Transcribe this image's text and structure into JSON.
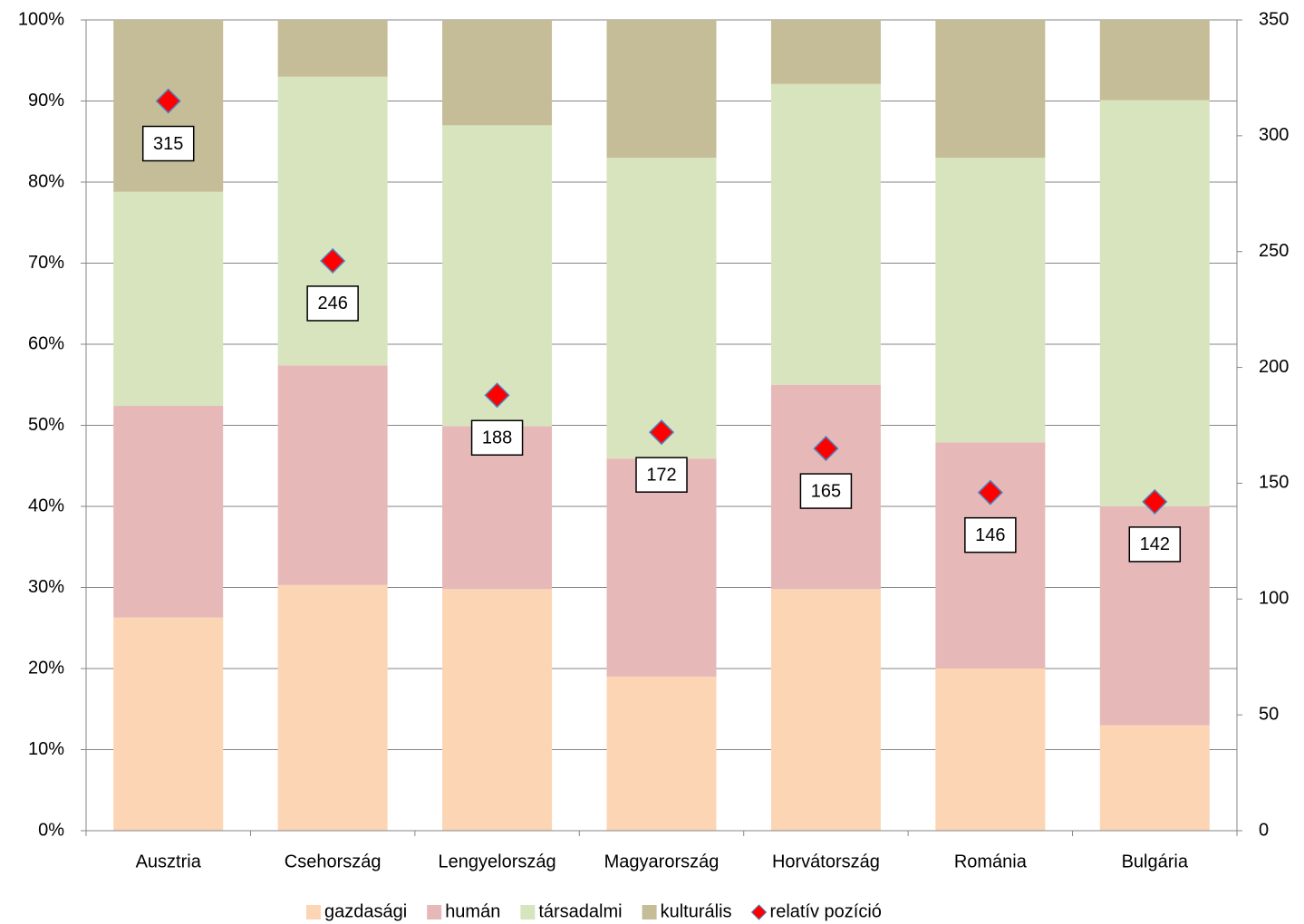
{
  "chart_data": {
    "type": "bar",
    "stacked": true,
    "categories": [
      "Ausztria",
      "Csehország",
      "Lengyelország",
      "Magyarország",
      "Horvátország",
      "Románia",
      "Bulgária"
    ],
    "series": [
      {
        "name": "gazdasági",
        "color": "#fcd5b5",
        "values": [
          26.3,
          30.3,
          29.8,
          19.0,
          29.8,
          20.0,
          13.0
        ]
      },
      {
        "name": "humán",
        "color": "#e6b9b8",
        "values": [
          26.1,
          27.1,
          20.1,
          26.9,
          25.2,
          27.9,
          27.0
        ]
      },
      {
        "name": "társadalmi",
        "color": "#d7e4bd",
        "values": [
          26.4,
          35.6,
          37.1,
          37.1,
          37.1,
          35.1,
          50.1
        ]
      },
      {
        "name": "kulturális",
        "color": "#c4bd97",
        "values": [
          21.2,
          7.0,
          13.0,
          17.0,
          7.9,
          17.0,
          9.9
        ]
      },
      {
        "name": "relatív pozíció",
        "color": "#ff0000",
        "type": "scatter",
        "axis": "y2",
        "values": [
          315,
          246,
          188,
          172,
          165,
          146,
          142
        ]
      }
    ],
    "ylim": [
      0,
      100
    ],
    "yticks": [
      {
        "value": 0,
        "label": "0%"
      },
      {
        "value": 10,
        "label": "10%"
      },
      {
        "value": 20,
        "label": "20%"
      },
      {
        "value": 30,
        "label": "30%"
      },
      {
        "value": 40,
        "label": "40%"
      },
      {
        "value": 50,
        "label": "50%"
      },
      {
        "value": 60,
        "label": "60%"
      },
      {
        "value": 70,
        "label": "70%"
      },
      {
        "value": 80,
        "label": "80%"
      },
      {
        "value": 90,
        "label": "90%"
      },
      {
        "value": 100,
        "label": "100%"
      }
    ],
    "y2lim": [
      0,
      350
    ],
    "y2ticks": [
      0,
      50,
      100,
      150,
      200,
      250,
      300,
      350
    ],
    "grid": true,
    "legend": "bottom"
  }
}
